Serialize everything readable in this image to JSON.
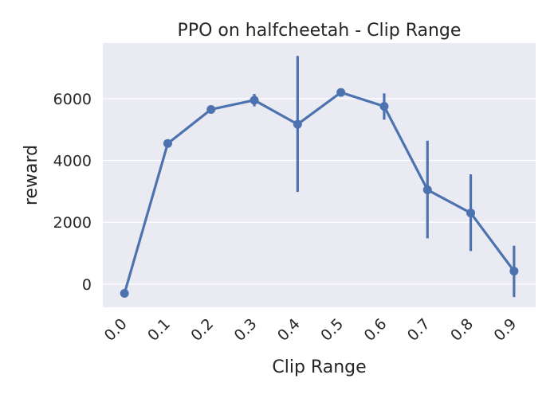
{
  "chart_data": {
    "type": "line",
    "title": "PPO on halfcheetah - Clip Range",
    "xlabel": "Clip Range",
    "ylabel": "reward",
    "categories": [
      "0.0",
      "0.1",
      "0.2",
      "0.3",
      "0.4",
      "0.5",
      "0.6",
      "0.7",
      "0.8",
      "0.9"
    ],
    "values": [
      -300,
      4550,
      5650,
      5950,
      5170,
      6200,
      5750,
      3050,
      2300,
      420
    ],
    "error_low": [
      -300,
      4550,
      5650,
      5750,
      2980,
      6080,
      5320,
      1480,
      1070,
      -420
    ],
    "error_high": [
      -300,
      4550,
      5650,
      6150,
      7380,
      6320,
      6170,
      4640,
      3550,
      1240
    ],
    "yticks": [
      0,
      2000,
      4000,
      6000
    ],
    "ylim": [
      -750,
      7800
    ],
    "grid": true,
    "style": {
      "background": "#EAEAF2",
      "line_color": "#4C72B0",
      "grid_color": "#FFFFFF"
    }
  }
}
